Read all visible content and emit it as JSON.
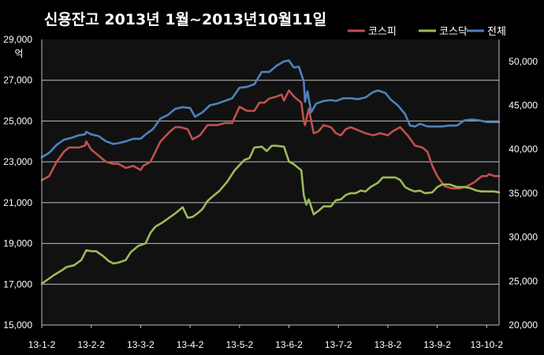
{
  "chart_data": {
    "type": "line",
    "title": "신용잔고 2013년 1월~2013년10월11일",
    "y_unit": "억",
    "ylim_left": [
      15000,
      29000
    ],
    "ylim_right": [
      20000,
      52500
    ],
    "yticks_left": [
      "15,000",
      "17,000",
      "19,000",
      "21,000",
      "23,000",
      "25,000",
      "27,000",
      "29,000"
    ],
    "yticks_right": [
      "20,000",
      "25,000",
      "30,000",
      "35,000",
      "40,000",
      "45,000",
      "50,000"
    ],
    "xticks": [
      "13-1-2",
      "13-2-2",
      "13-3-2",
      "13-4-2",
      "13-5-2",
      "13-6-2",
      "13-7-2",
      "13-8-2",
      "13-9-2",
      "13-10-2"
    ],
    "legend_position": "top-right",
    "grid": "horizontal",
    "colors": {
      "background": "#000000",
      "plot_background": "#111111",
      "grid": "#bfbfbf"
    },
    "series": [
      {
        "name": "코스피",
        "axis": "left",
        "color": "#c0504d",
        "points": [
          [
            0,
            22100
          ],
          [
            0.3,
            22300
          ],
          [
            0.6,
            23000
          ],
          [
            0.9,
            23500
          ],
          [
            1.1,
            23700
          ],
          [
            1.3,
            23700
          ],
          [
            1.5,
            23700
          ],
          [
            1.75,
            23800
          ],
          [
            1.8,
            24000
          ],
          [
            2.0,
            23600
          ],
          [
            2.3,
            23300
          ],
          [
            2.6,
            23000
          ],
          [
            2.9,
            22900
          ],
          [
            3.1,
            22900
          ],
          [
            3.4,
            22700
          ],
          [
            3.7,
            22800
          ],
          [
            4.0,
            22600
          ],
          [
            4.1,
            22800
          ],
          [
            4.4,
            23000
          ],
          [
            4.6,
            23500
          ],
          [
            4.8,
            24000
          ],
          [
            5.2,
            24500
          ],
          [
            5.4,
            24700
          ],
          [
            5.6,
            24700
          ],
          [
            5.9,
            24600
          ],
          [
            6.1,
            24100
          ],
          [
            6.4,
            24300
          ],
          [
            6.7,
            24800
          ],
          [
            7.1,
            24800
          ],
          [
            7.4,
            24900
          ],
          [
            7.7,
            24900
          ],
          [
            8.0,
            25700
          ],
          [
            8.3,
            25500
          ],
          [
            8.6,
            25500
          ],
          [
            8.8,
            25900
          ],
          [
            9.0,
            25900
          ],
          [
            9.2,
            26100
          ],
          [
            9.5,
            26200
          ],
          [
            9.7,
            26300
          ],
          [
            9.8,
            26000
          ],
          [
            10.0,
            26500
          ],
          [
            10.2,
            26200
          ],
          [
            10.5,
            25900
          ],
          [
            10.6,
            25000
          ],
          [
            10.65,
            24800
          ],
          [
            10.8,
            25600
          ],
          [
            11.0,
            24400
          ],
          [
            11.2,
            24500
          ],
          [
            11.4,
            24800
          ],
          [
            11.7,
            24700
          ],
          [
            11.9,
            24400
          ],
          [
            12.1,
            24300
          ],
          [
            12.3,
            24600
          ],
          [
            12.5,
            24700
          ],
          [
            12.9,
            24500
          ],
          [
            13.1,
            24400
          ],
          [
            13.4,
            24300
          ],
          [
            13.7,
            24400
          ],
          [
            14.0,
            24300
          ],
          [
            14.2,
            24500
          ],
          [
            14.5,
            24700
          ],
          [
            14.8,
            24300
          ],
          [
            15.1,
            23800
          ],
          [
            15.4,
            23700
          ],
          [
            15.6,
            23500
          ],
          [
            15.8,
            22800
          ],
          [
            16.0,
            22300
          ],
          [
            16.3,
            21800
          ],
          [
            16.6,
            21700
          ],
          [
            16.9,
            21700
          ],
          [
            17.2,
            21800
          ],
          [
            17.5,
            22000
          ],
          [
            17.8,
            22300
          ],
          [
            18.0,
            22300
          ],
          [
            18.1,
            22400
          ],
          [
            18.3,
            22300
          ],
          [
            18.5,
            22300
          ]
        ]
      },
      {
        "name": "코스닥",
        "axis": "right",
        "color": "#9bbb59",
        "points": [
          [
            0,
            24700
          ],
          [
            0.2,
            25100
          ],
          [
            0.5,
            25700
          ],
          [
            0.8,
            26200
          ],
          [
            1.0,
            26600
          ],
          [
            1.3,
            26800
          ],
          [
            1.6,
            27400
          ],
          [
            1.8,
            28500
          ],
          [
            2.0,
            28400
          ],
          [
            2.2,
            28400
          ],
          [
            2.5,
            27800
          ],
          [
            2.7,
            27300
          ],
          [
            2.9,
            27000
          ],
          [
            3.1,
            27100
          ],
          [
            3.4,
            27400
          ],
          [
            3.6,
            28300
          ],
          [
            3.9,
            29000
          ],
          [
            4.2,
            29300
          ],
          [
            4.4,
            30500
          ],
          [
            4.6,
            31200
          ],
          [
            4.9,
            31700
          ],
          [
            5.1,
            32100
          ],
          [
            5.4,
            32700
          ],
          [
            5.7,
            33400
          ],
          [
            5.9,
            32200
          ],
          [
            6.1,
            32300
          ],
          [
            6.3,
            32700
          ],
          [
            6.5,
            33200
          ],
          [
            6.7,
            34100
          ],
          [
            6.9,
            34600
          ],
          [
            7.2,
            35300
          ],
          [
            7.5,
            36300
          ],
          [
            7.8,
            37600
          ],
          [
            8.0,
            38200
          ],
          [
            8.2,
            38800
          ],
          [
            8.4,
            39000
          ],
          [
            8.6,
            40200
          ],
          [
            8.9,
            40300
          ],
          [
            9.1,
            39800
          ],
          [
            9.3,
            40400
          ],
          [
            9.5,
            40400
          ],
          [
            9.8,
            40300
          ],
          [
            10.0,
            38600
          ],
          [
            10.2,
            38300
          ],
          [
            10.5,
            37600
          ],
          [
            10.6,
            34800
          ],
          [
            10.7,
            33700
          ],
          [
            10.8,
            34300
          ],
          [
            11.0,
            32600
          ],
          [
            11.2,
            33000
          ],
          [
            11.4,
            33500
          ],
          [
            11.7,
            33500
          ],
          [
            11.9,
            34200
          ],
          [
            12.1,
            34300
          ],
          [
            12.3,
            34800
          ],
          [
            12.5,
            35000
          ],
          [
            12.7,
            35000
          ],
          [
            12.9,
            35300
          ],
          [
            13.1,
            35200
          ],
          [
            13.3,
            35700
          ],
          [
            13.6,
            36200
          ],
          [
            13.8,
            36800
          ],
          [
            14.0,
            36800
          ],
          [
            14.3,
            36800
          ],
          [
            14.5,
            36500
          ],
          [
            14.7,
            35700
          ],
          [
            14.9,
            35400
          ],
          [
            15.1,
            35200
          ],
          [
            15.3,
            35300
          ],
          [
            15.5,
            35000
          ],
          [
            15.8,
            35100
          ],
          [
            16.0,
            35700
          ],
          [
            16.2,
            36000
          ],
          [
            16.5,
            36000
          ],
          [
            16.8,
            35700
          ],
          [
            17.1,
            35700
          ],
          [
            17.3,
            35600
          ],
          [
            17.6,
            35300
          ],
          [
            17.8,
            35200
          ],
          [
            18.1,
            35200
          ],
          [
            18.3,
            35200
          ],
          [
            18.5,
            35100
          ]
        ]
      },
      {
        "name": "전체",
        "axis": "right",
        "color": "#4f81bd",
        "points": [
          [
            0,
            39100
          ],
          [
            0.3,
            39600
          ],
          [
            0.6,
            40500
          ],
          [
            0.9,
            41100
          ],
          [
            1.2,
            41300
          ],
          [
            1.5,
            41600
          ],
          [
            1.75,
            41700
          ],
          [
            1.8,
            42000
          ],
          [
            2.0,
            41700
          ],
          [
            2.3,
            41500
          ],
          [
            2.6,
            40900
          ],
          [
            2.9,
            40600
          ],
          [
            3.1,
            40700
          ],
          [
            3.4,
            40900
          ],
          [
            3.7,
            41200
          ],
          [
            4.0,
            41200
          ],
          [
            4.2,
            41700
          ],
          [
            4.5,
            42300
          ],
          [
            4.8,
            43500
          ],
          [
            5.1,
            43900
          ],
          [
            5.4,
            44600
          ],
          [
            5.7,
            44800
          ],
          [
            6.0,
            44700
          ],
          [
            6.2,
            43700
          ],
          [
            6.5,
            44200
          ],
          [
            6.8,
            45000
          ],
          [
            7.1,
            45200
          ],
          [
            7.4,
            45500
          ],
          [
            7.7,
            45800
          ],
          [
            8.0,
            47000
          ],
          [
            8.3,
            47100
          ],
          [
            8.6,
            47400
          ],
          [
            8.9,
            48800
          ],
          [
            9.2,
            48800
          ],
          [
            9.5,
            49500
          ],
          [
            9.8,
            50000
          ],
          [
            10.0,
            50100
          ],
          [
            10.2,
            49300
          ],
          [
            10.4,
            49400
          ],
          [
            10.6,
            47700
          ],
          [
            10.65,
            45400
          ],
          [
            10.75,
            46600
          ],
          [
            10.9,
            44200
          ],
          [
            11.1,
            45200
          ],
          [
            11.4,
            45500
          ],
          [
            11.7,
            45600
          ],
          [
            11.9,
            45500
          ],
          [
            12.2,
            45800
          ],
          [
            12.5,
            45800
          ],
          [
            12.8,
            45700
          ],
          [
            13.1,
            45900
          ],
          [
            13.4,
            46500
          ],
          [
            13.6,
            46700
          ],
          [
            13.9,
            46400
          ],
          [
            14.1,
            45700
          ],
          [
            14.4,
            45000
          ],
          [
            14.7,
            44000
          ],
          [
            14.9,
            42700
          ],
          [
            15.1,
            42600
          ],
          [
            15.3,
            42900
          ],
          [
            15.6,
            42600
          ],
          [
            15.9,
            42600
          ],
          [
            16.2,
            42600
          ],
          [
            16.5,
            42700
          ],
          [
            16.8,
            42700
          ],
          [
            17.1,
            43300
          ],
          [
            17.4,
            43400
          ],
          [
            17.7,
            43300
          ],
          [
            18.0,
            43100
          ],
          [
            18.3,
            43100
          ],
          [
            18.5,
            43100
          ]
        ]
      }
    ]
  }
}
